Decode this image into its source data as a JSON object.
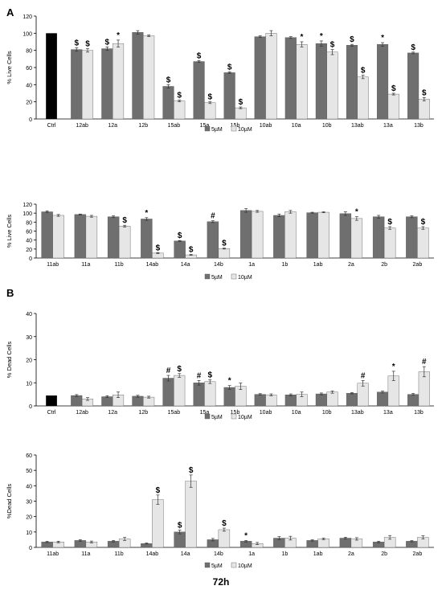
{
  "figure": {
    "panel_labels": [
      "A",
      "B"
    ],
    "footer": "72h"
  },
  "legend": {
    "labels": [
      "5µM",
      "10µM"
    ]
  },
  "colors": {
    "ctrl": "#000000",
    "dark": "#6f6f6f",
    "light": "#e6e6e6",
    "axis": "#000000"
  },
  "chart_data": [
    {
      "type": "bar",
      "ylabel": "% Live Cells",
      "ylim": [
        0,
        120
      ],
      "yticks": [
        0,
        20,
        40,
        60,
        80,
        100,
        120
      ],
      "ctrl": {
        "label": "Ctrl",
        "value": 100
      },
      "categories": [
        "12ab",
        "12a",
        "12b",
        "15ab",
        "15a",
        "15b",
        "10ab",
        "10a",
        "10b",
        "13ab",
        "13a",
        "13b"
      ],
      "series": [
        {
          "name": "5µM",
          "values": [
            81,
            82,
            101,
            38,
            67,
            54,
            96,
            95,
            88,
            86,
            87,
            77
          ],
          "errors": [
            2,
            2,
            2,
            2,
            1,
            1,
            1,
            1,
            3,
            1,
            2,
            1
          ],
          "marks": [
            "$",
            "$",
            "",
            "$",
            "$",
            "$",
            "",
            "",
            "*",
            "$",
            "*",
            "$"
          ]
        },
        {
          "name": "10µM",
          "values": [
            80,
            88,
            97,
            21,
            19,
            13,
            100,
            87,
            78,
            49,
            29,
            23
          ],
          "errors": [
            2,
            4,
            1,
            1,
            1,
            1,
            3,
            3,
            3,
            2,
            1,
            2
          ],
          "marks": [
            "$",
            "*",
            "",
            "$",
            "$",
            "$",
            "",
            "*",
            "$",
            "$",
            "$",
            "$"
          ]
        }
      ],
      "legend": "bottom"
    },
    {
      "type": "bar",
      "ylabel": "% Live Cells",
      "ylim": [
        0,
        120
      ],
      "yticks": [
        0,
        20,
        40,
        60,
        80,
        100,
        120
      ],
      "categories": [
        "11ab",
        "11a",
        "11b",
        "14ab",
        "14a",
        "14b",
        "1a",
        "1b",
        "1ab",
        "2a",
        "2b",
        "2ab"
      ],
      "series": [
        {
          "name": "5µM",
          "values": [
            103,
            97,
            92,
            87,
            38,
            81,
            106,
            95,
            101,
            99,
            92,
            92
          ],
          "errors": [
            2,
            1,
            2,
            3,
            1,
            2,
            4,
            3,
            1,
            4,
            3,
            2
          ],
          "marks": [
            "",
            "",
            "",
            "*",
            "$",
            "#",
            "",
            "",
            "",
            "",
            "",
            ""
          ]
        },
        {
          "name": "10µM",
          "values": [
            95,
            93,
            71,
            11,
            7,
            21,
            104,
            103,
            102,
            88,
            67,
            67
          ],
          "errors": [
            2,
            2,
            2,
            1,
            1,
            1,
            2,
            3,
            1,
            4,
            3,
            3
          ],
          "marks": [
            "",
            "",
            "$",
            "$",
            "$",
            "$",
            "",
            "",
            "",
            "*",
            "$",
            "$"
          ]
        }
      ],
      "legend": "bottom"
    },
    {
      "type": "bar",
      "ylabel": "% Dead Cells",
      "ylim": [
        0,
        40
      ],
      "yticks": [
        0,
        10,
        20,
        30,
        40
      ],
      "ctrl": {
        "label": "Ctrl",
        "value": 4.5
      },
      "categories": [
        "12ab",
        "12a",
        "12b",
        "15ab",
        "15a",
        "15b",
        "10ab",
        "10a",
        "10b",
        "13ab",
        "13a",
        "13b"
      ],
      "series": [
        {
          "name": "5µM",
          "values": [
            4.5,
            4,
            4.2,
            12,
            10,
            8,
            5,
            4.8,
            5.2,
            5.5,
            6,
            5
          ],
          "errors": [
            0.4,
            0.4,
            0.4,
            1.2,
            1,
            0.8,
            0.3,
            0.4,
            0.4,
            0.3,
            0.4,
            0.4
          ],
          "marks": [
            "",
            "",
            "",
            "#",
            "#",
            "*",
            "",
            "",
            "",
            "",
            "",
            ""
          ]
        },
        {
          "name": "10µM",
          "values": [
            3,
            4.8,
            3.8,
            13.2,
            10.5,
            8.5,
            4.8,
            5,
            6,
            9.8,
            13,
            14.8
          ],
          "errors": [
            0.6,
            1.2,
            0.4,
            0.8,
            0.8,
            1.4,
            0.4,
            1,
            0.5,
            1.2,
            2,
            2.2
          ],
          "marks": [
            "",
            "",
            "",
            "$",
            "$",
            "",
            "",
            "",
            "",
            "#",
            "*",
            "#"
          ]
        }
      ],
      "legend": "bottom"
    },
    {
      "type": "bar",
      "ylabel": "%Dead Cells",
      "ylim": [
        0,
        60
      ],
      "yticks": [
        0,
        10,
        20,
        30,
        40,
        50,
        60
      ],
      "categories": [
        "11ab",
        "11a",
        "11b",
        "14ab",
        "14a",
        "14b",
        "1a",
        "1b",
        "1ab",
        "2a",
        "2b",
        "2ab"
      ],
      "series": [
        {
          "name": "5µM",
          "values": [
            3.5,
            4.5,
            4,
            2.5,
            10,
            5,
            4,
            6,
            4.5,
            6,
            3.5,
            4
          ],
          "errors": [
            0.4,
            0.5,
            0.5,
            0.3,
            1.2,
            0.8,
            0.5,
            1,
            0.4,
            0.6,
            0.5,
            0.4
          ],
          "marks": [
            "",
            "",
            "",
            "",
            "$",
            "",
            "*",
            "",
            "",
            "",
            "",
            ""
          ]
        },
        {
          "name": "10µM",
          "values": [
            3.5,
            3.5,
            5.5,
            31,
            43,
            11.5,
            2.5,
            6,
            5.5,
            5.5,
            6.5,
            6.5
          ],
          "errors": [
            0.5,
            0.6,
            1,
            3,
            4,
            1,
            0.7,
            1.2,
            0.5,
            0.8,
            1.2,
            1
          ],
          "marks": [
            "",
            "",
            "",
            "$",
            "$",
            "$",
            "",
            "",
            "",
            "",
            "",
            ""
          ]
        }
      ],
      "legend": "bottom"
    }
  ]
}
